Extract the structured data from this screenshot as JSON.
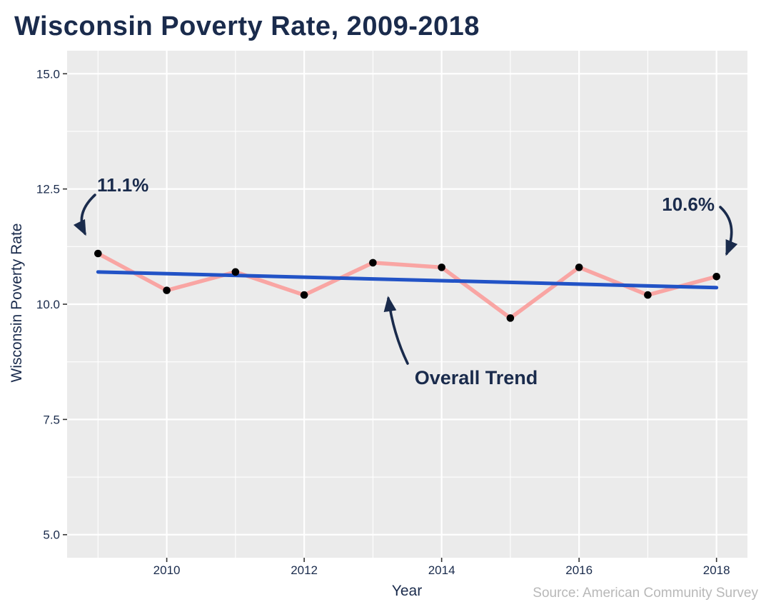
{
  "title": "Wisconsin Poverty Rate, 2009-2018",
  "axes": {
    "x_label": "Year",
    "y_label": "Wisconsin Poverty Rate"
  },
  "source": "Source: American Community Survey",
  "annotations": {
    "start_label": "11.1%",
    "end_label": "10.6%",
    "trend_label": "Overall Trend"
  },
  "colors": {
    "navy": "#1a2b4c",
    "series_pink": "#f9a5a3",
    "trend_blue": "#2253c6",
    "point_black": "#000000",
    "panel_bg": "#ebebeb",
    "grid": "#ffffff",
    "tick": "#333333",
    "source_gray": "#b8b8b8"
  },
  "chart_data": {
    "type": "line",
    "title": "Wisconsin Poverty Rate, 2009-2018",
    "xlabel": "Year",
    "ylabel": "Wisconsin Poverty Rate",
    "x": [
      2009,
      2010,
      2011,
      2012,
      2013,
      2014,
      2015,
      2016,
      2017,
      2018
    ],
    "series": [
      {
        "name": "Wisconsin poverty rate",
        "type": "line+points",
        "color": "#f9a5a3",
        "values": [
          11.1,
          10.3,
          10.7,
          10.2,
          10.9,
          10.8,
          9.7,
          10.8,
          10.2,
          10.6
        ]
      },
      {
        "name": "Overall Trend",
        "type": "trendline",
        "color": "#2253c6",
        "x": [
          2009,
          2018
        ],
        "values": [
          10.7,
          10.36
        ]
      }
    ],
    "x_ticks": [
      2010,
      2012,
      2014,
      2016,
      2018
    ],
    "x_minor_gridlines": [
      2009,
      2011,
      2013,
      2015,
      2017
    ],
    "y_ticks": [
      5.0,
      7.5,
      10.0,
      12.5,
      15.0
    ],
    "y_tick_labels": [
      "5.0",
      "7.5",
      "10.0",
      "12.5",
      "15.0"
    ],
    "y_minor_gridlines": [
      6.25,
      8.75,
      11.25,
      13.75
    ],
    "xlim": [
      2008.55,
      2018.45
    ],
    "ylim": [
      4.5,
      15.5
    ],
    "grid": true,
    "legend": "none",
    "annotations": [
      {
        "text": "11.1%",
        "points_to": {
          "x": 2009,
          "y": 11.1
        }
      },
      {
        "text": "10.6%",
        "points_to": {
          "x": 2018,
          "y": 10.6
        }
      },
      {
        "text": "Overall Trend",
        "points_to": "trendline"
      }
    ],
    "caption": "Source: American Community Survey"
  }
}
